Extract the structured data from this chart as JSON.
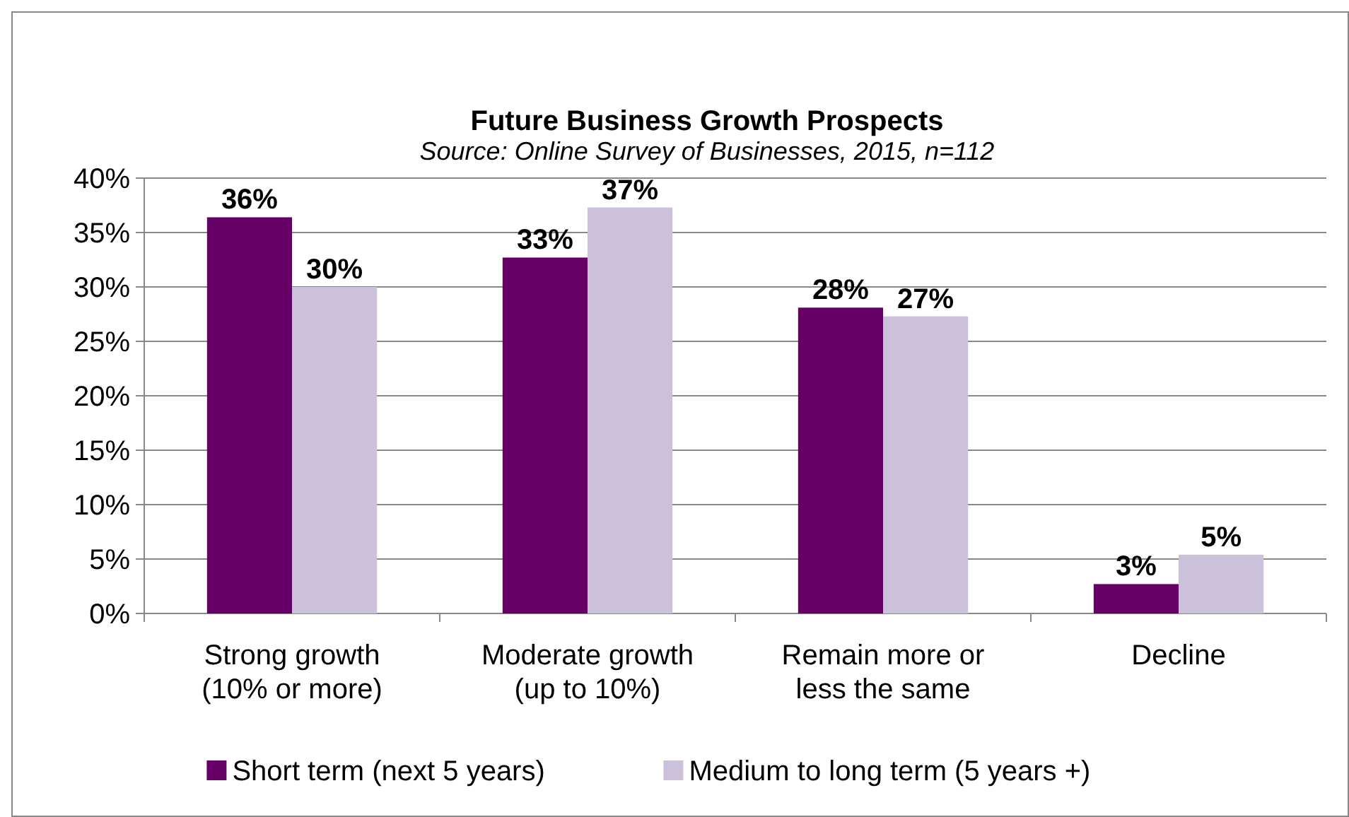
{
  "chart_data": {
    "type": "bar",
    "title": "Future Business Growth Prospects",
    "subtitle": "Source: Online Survey of Businesses, 2015, n=112",
    "categories": [
      "Strong growth (10% or more)",
      "Moderate growth (up to 10%)",
      "Remain more or less the same",
      "Decline"
    ],
    "series": [
      {
        "name": "Short term (next 5 years)",
        "color": "#660066",
        "values": [
          36.4,
          32.7,
          28.1,
          2.7
        ],
        "value_labels": [
          "36%",
          "33%",
          "28%",
          "3%"
        ]
      },
      {
        "name": "Medium to long term (5 years +)",
        "color": "#ccc1da",
        "values": [
          30,
          37.3,
          27.3,
          5.4
        ],
        "value_labels": [
          "30%",
          "37%",
          "27%",
          "5%"
        ]
      }
    ],
    "ylim": [
      0,
      40
    ],
    "yticks": [
      {
        "value": 0,
        "label": "0%"
      },
      {
        "value": 5,
        "label": "5%"
      },
      {
        "value": 10,
        "label": "10%"
      },
      {
        "value": 15,
        "label": "15%"
      },
      {
        "value": 20,
        "label": "20%"
      },
      {
        "value": 25,
        "label": "25%"
      },
      {
        "value": 30,
        "label": "30%"
      },
      {
        "value": 35,
        "label": "35%"
      },
      {
        "value": 40,
        "label": "40%"
      }
    ],
    "grid": "y",
    "legend": "bottom"
  }
}
